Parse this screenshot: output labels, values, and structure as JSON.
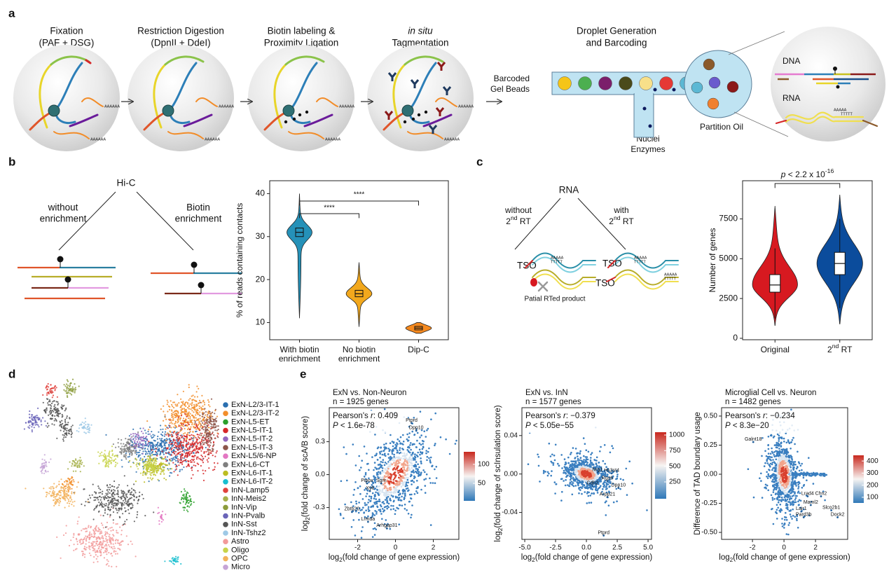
{
  "figure": {
    "a": {
      "label": "a",
      "steps": [
        [
          "Fixation",
          "(PAF + DSG)"
        ],
        [
          "Restriction Digestion",
          "(DpnII + DdeI)"
        ],
        [
          "Biotin labeling &",
          "Proximity Ligation"
        ],
        [
          "in situ",
          "Tagmentation"
        ]
      ],
      "poly_a": "AAAAAA",
      "droplet": {
        "title": [
          "Droplet Generation",
          "and Barcoding"
        ],
        "beads": [
          "Barcoded",
          "Gel Beads"
        ],
        "nuclei": [
          "Nuclei",
          "Enzymes"
        ],
        "oil": "Partition Oil",
        "dna": "DNA",
        "rna": "RNA",
        "poly_a": "AAAAA",
        "poly_t": "TTTTT"
      }
    },
    "b": {
      "label": "b",
      "hic": {
        "root": "Hi-C",
        "left": [
          "without",
          "enrichment"
        ],
        "right": [
          "Biotin",
          "enrichment"
        ]
      },
      "violin": {
        "type": "violin",
        "ylabel": "% of reads containing contacts",
        "categories": [
          [
            "With biotin",
            "enrichment"
          ],
          [
            "No biotin",
            "enrichment"
          ],
          [
            "Dip-C"
          ]
        ],
        "colors": [
          "#2591b8",
          "#f2a81d",
          "#f5891f"
        ],
        "min": [
          11,
          9,
          7.5
        ],
        "q1": [
          30,
          16,
          8.3
        ],
        "median": [
          31,
          16.7,
          8.7
        ],
        "q3": [
          32,
          17.5,
          9.1
        ],
        "max": [
          40,
          24,
          10
        ],
        "ylim": [
          6,
          43
        ],
        "yticks": [
          10,
          20,
          30,
          40
        ],
        "significance": [
          "****",
          "****"
        ]
      }
    },
    "c": {
      "label": "c",
      "rna": {
        "root": "RNA",
        "left": [
          "without",
          [
            "2",
            "nd",
            " RT"
          ]
        ],
        "right": [
          "with",
          [
            "2",
            "nd",
            " RT"
          ]
        ],
        "tso": "TSO",
        "poly_a": "AAAAA",
        "poly_t": "TTTTT",
        "partial": "Patial RTed product"
      },
      "violin": {
        "type": "violin",
        "ylabel": "Number of genes",
        "categories": [
          "Original",
          [
            "2",
            "nd",
            " RT"
          ]
        ],
        "colors": [
          "#d71920",
          "#0b4c9c"
        ],
        "min": [
          800,
          900
        ],
        "q1": [
          2900,
          4000
        ],
        "median": [
          3350,
          4700
        ],
        "q3": [
          4000,
          5400
        ],
        "max": [
          8300,
          9000
        ],
        "ylim": [
          -90,
          9900
        ],
        "yticks": [
          0,
          2500,
          5000,
          7500
        ],
        "pvalue": [
          "p",
          " < 2.2 x 10",
          "-16"
        ]
      }
    },
    "d": {
      "label": "d",
      "legend": [
        {
          "name": "ExN-L2/3-IT-1",
          "color": "#2a6fb0"
        },
        {
          "name": "ExN-L2/3-IT-2",
          "color": "#f28e2b"
        },
        {
          "name": "ExN-L5-ET",
          "color": "#2ca02c"
        },
        {
          "name": "ExN-L5-IT-1",
          "color": "#d62728"
        },
        {
          "name": "ExN-L5-IT-2",
          "color": "#9467bd"
        },
        {
          "name": "ExN-L5-IT-3",
          "color": "#8c564b"
        },
        {
          "name": "ExN-L5/6-NP",
          "color": "#e377c2"
        },
        {
          "name": "ExN-L6-CT",
          "color": "#7f7f7f"
        },
        {
          "name": "ExN-L6-IT-1",
          "color": "#bcbd22"
        },
        {
          "name": "ExN-L6-IT-2",
          "color": "#17becf"
        },
        {
          "name": "InN-Lamp5",
          "color": "#e0413c"
        },
        {
          "name": "InN-Meis2",
          "color": "#a6b04a"
        },
        {
          "name": "InN-Vip",
          "color": "#8c9c3c"
        },
        {
          "name": "InN-Pvalb",
          "color": "#6a64b8"
        },
        {
          "name": "InN-Sst",
          "color": "#555555"
        },
        {
          "name": "InN-Tshz2",
          "color": "#9ec9e6"
        },
        {
          "name": "Astro",
          "color": "#f29a9a"
        },
        {
          "name": "Oligo",
          "color": "#c8d34a"
        },
        {
          "name": "OPC",
          "color": "#f2b25c"
        },
        {
          "name": "Micro",
          "color": "#c6a4d6"
        }
      ]
    },
    "e": {
      "label": "e",
      "charts": [
        {
          "type": "scatter",
          "title": "ExN vs. Non-Neuron",
          "subtitle": "n = 1925 genes",
          "stat": [
            [
              "Pearson's ",
              "r",
              ": 0.409"
            ],
            [
              "P",
              " < 1.6e-78"
            ]
          ],
          "xlabel": [
            "log",
            "2",
            "(fold change of gene expression)"
          ],
          "ylabel": [
            "log",
            "2",
            "(fold change of scA/B score)"
          ],
          "xlim": [
            -3.5,
            3.35
          ],
          "ylim": [
            -0.59,
            0.61
          ],
          "xticks": [
            -2,
            0,
            2
          ],
          "yticks": [
            0.3,
            {
              "value": 0,
              "label": "0.0"
            },
            -0.3
          ],
          "genes": [
            {
              "label": "Ptprd",
              "x": 0.85,
              "y": 0.47
            },
            {
              "label": "Dpp10",
              "x": 1.1,
              "y": 0.4
            },
            {
              "label": "Pipox",
              "x": -1.5,
              "y": -0.08
            },
            {
              "label": "Sgrn",
              "x": -0.75,
              "y": -0.08
            },
            {
              "label": "Xylt",
              "x": -1.35,
              "y": -0.15
            },
            {
              "label": "Zbtb20",
              "x": -2.3,
              "y": -0.34
            },
            {
              "label": "Lrmda",
              "x": -1.45,
              "y": -0.43
            },
            {
              "label": "Arhgap31",
              "x": -0.45,
              "y": -0.49
            }
          ],
          "colorbar": {
            "lim": [
              4,
              133
            ],
            "ticks": [
              100,
              50
            ]
          }
        },
        {
          "type": "scatter",
          "title": "ExN vs. InN",
          "subtitle": "n = 1577 genes",
          "stat": [
            [
              "Pearson's ",
              "r",
              ": −0.379"
            ],
            [
              "P",
              " < 5.05e−55"
            ]
          ],
          "xlabel": [
            "log",
            "2",
            "(fold change of gene expression)"
          ],
          "ylabel": [
            "log",
            "2",
            "(fold change of scInsulation score)"
          ],
          "xlim": [
            -5.23,
            5.28
          ],
          "ylim": [
            -0.068,
            0.069
          ],
          "xticks": [
            {
              "value": -5,
              "label": "-5.0"
            },
            -2.5,
            {
              "value": 0,
              "label": "0.0"
            },
            2.5,
            {
              "value": 5,
              "label": "5.0"
            }
          ],
          "yticks": [
            0.04,
            {
              "value": 0,
              "label": "0.00"
            },
            -0.04
          ],
          "genes": [
            {
              "label": "Nrg1",
              "x": 0.9,
              "y": 0.0015
            },
            {
              "label": "Hs3st4",
              "x": 2.05,
              "y": 0.0007
            },
            {
              "label": "Rgs6",
              "x": 1.7,
              "y": -0.0073
            },
            {
              "label": "Cdh2",
              "x": 0.5,
              "y": -0.0124
            },
            {
              "label": "Dpp10",
              "x": 2.6,
              "y": -0.0145
            },
            {
              "label": "Arpp21",
              "x": 1.7,
              "y": -0.024
            },
            {
              "label": "Ptprd",
              "x": 1.4,
              "y": -0.064
            }
          ],
          "colorbar": {
            "lim": [
              -19,
              1045
            ],
            "ticks": [
              1000,
              750,
              500,
              250
            ]
          }
        },
        {
          "type": "scatter",
          "title": "Microglial Cell vs. Neuron",
          "subtitle": "n = 1482 genes",
          "stat": [
            [
              "Pearson's ",
              "r",
              ": −0.234"
            ],
            [
              "P",
              " < 8.3e−20"
            ]
          ],
          "xlabel": [
            "log",
            "2",
            "(fold change of gene expression)"
          ],
          "ylabel": "Difference of TAD boundary usage",
          "xlim": [
            -3.96,
            4.04
          ],
          "ylim": [
            -0.56,
            0.572
          ],
          "xticks": [
            -2,
            0,
            2
          ],
          "yticks": [
            {
              "value": 0.5,
              "label": "0.50"
            },
            0.25,
            {
              "value": 0,
              "label": "0.00"
            },
            -0.25,
            {
              "value": -0.5,
              "label": "-0.50"
            }
          ],
          "genes": [
            {
              "label": "Galnt18",
              "x": -1.95,
              "y": 0.277
            },
            {
              "label": "Lrad4",
              "x": 1.5,
              "y": -0.19
            },
            {
              "label": "Chn2",
              "x": 2.35,
              "y": -0.19
            },
            {
              "label": "Maml2",
              "x": 1.7,
              "y": -0.265
            },
            {
              "label": "Lair1",
              "x": 1.1,
              "y": -0.32
            },
            {
              "label": "Slco2b1",
              "x": 3.0,
              "y": -0.31
            },
            {
              "label": "Pard3b",
              "x": 1.25,
              "y": -0.37
            },
            {
              "label": "Dock2",
              "x": 3.4,
              "y": -0.37
            }
          ],
          "colorbar": {
            "lim": [
              53,
              447
            ],
            "ticks": [
              400,
              300,
              200,
              100
            ]
          }
        }
      ]
    }
  }
}
